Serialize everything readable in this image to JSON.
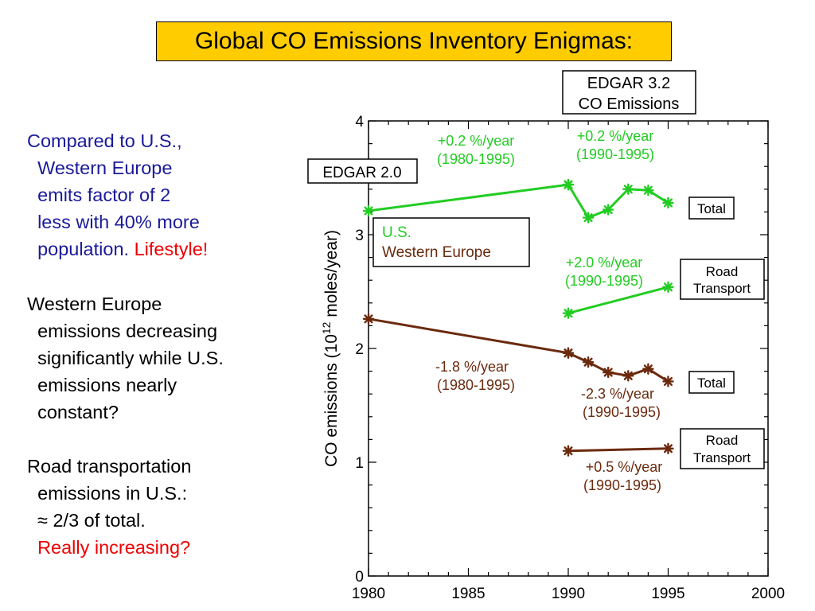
{
  "slide": {
    "title": "Global CO Emissions Inventory Enigmas:",
    "note1": {
      "line1": "Compared to U.S.,",
      "line2": "Western Europe",
      "line3": "emits factor of 2",
      "line4": "less with 40% more",
      "line5a": "population. ",
      "line5b": "Lifestyle!"
    },
    "note2": {
      "line1": "Western Europe",
      "line2": "emissions decreasing",
      "line3": "significantly while U.S.",
      "line4": "emissions nearly",
      "line5": "constant?"
    },
    "note3": {
      "line1": "Road transportation",
      "line2": "emissions in U.S.:",
      "line3": "≈ 2/3 of total.",
      "line4": "Really increasing?"
    },
    "colors": {
      "title_bg": "#ffcc00",
      "blue_text": "#1a1a99",
      "emphasis": "#ee0000"
    }
  },
  "chart_data": {
    "type": "line",
    "xlabel": "",
    "ylabel_prefix": "CO emissions (10",
    "ylabel_exp": "12",
    "ylabel_suffix": " moles/year)",
    "xlim": [
      1980,
      2000
    ],
    "ylim": [
      0,
      4
    ],
    "xticks": [
      1980,
      1985,
      1990,
      1995,
      2000
    ],
    "yticks": [
      0,
      1,
      2,
      3,
      4
    ],
    "grid": false,
    "series": [
      {
        "group": "us_total",
        "color": "#22cc22",
        "x": [
          1980,
          1990
        ],
        "y": [
          3.21,
          3.44
        ]
      },
      {
        "group": "us_total",
        "color": "#22cc22",
        "x": [
          1990,
          1991,
          1992,
          1993,
          1994,
          1995
        ],
        "y": [
          3.44,
          3.15,
          3.22,
          3.4,
          3.39,
          3.28
        ]
      },
      {
        "group": "us_road",
        "color": "#22cc22",
        "x": [
          1990,
          1995
        ],
        "y": [
          2.31,
          2.54
        ]
      },
      {
        "group": "we_total",
        "color": "#6b2a0e",
        "x": [
          1980,
          1990
        ],
        "y": [
          2.26,
          1.96
        ]
      },
      {
        "group": "we_total",
        "color": "#6b2a0e",
        "x": [
          1990,
          1991,
          1992,
          1993,
          1994,
          1995
        ],
        "y": [
          1.96,
          1.88,
          1.79,
          1.76,
          1.82,
          1.71
        ]
      },
      {
        "group": "we_road",
        "color": "#6b2a0e",
        "x": [
          1990,
          1995
        ],
        "y": [
          1.1,
          1.12
        ]
      }
    ],
    "legend": {
      "placement": "upper-left",
      "entries": [
        {
          "label": "U.S.",
          "color": "#22cc22"
        },
        {
          "label": "Western Europe",
          "color": "#6b2a0e"
        }
      ]
    },
    "box_labels": {
      "edgar20": "EDGAR 2.0",
      "edgar32_line1": "EDGAR 3.2",
      "edgar32_line2": "CO Emissions",
      "total_us": "Total",
      "road_us_line1": "Road",
      "road_us_line2": "Transport",
      "total_we": "Total",
      "road_we_line1": "Road",
      "road_we_line2": "Transport"
    },
    "annotations": [
      {
        "line1": "+0.2 %/year",
        "line2": "(1980-1995)",
        "color": "#22cc22"
      },
      {
        "line1": "+0.2 %/year",
        "line2": "(1990-1995)",
        "color": "#22cc22"
      },
      {
        "line1": "+2.0 %/year",
        "line2": "(1990-1995)",
        "color": "#22cc22"
      },
      {
        "line1": "-1.8 %/year",
        "line2": "(1980-1995)",
        "color": "#6b2a0e"
      },
      {
        "line1": "-2.3 %/year",
        "line2": "(1990-1995)",
        "color": "#6b2a0e"
      },
      {
        "line1": "+0.5 %/year",
        "line2": "(1990-1995)",
        "color": "#6b2a0e"
      }
    ]
  }
}
